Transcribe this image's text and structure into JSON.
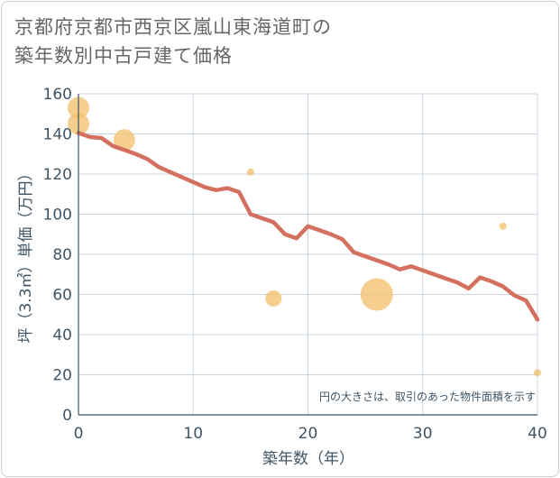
{
  "title_lines": [
    "京都府京都市西京区嵐山東海道町の",
    "築年数別中古戸建て価格"
  ],
  "chart_data": {
    "type": "scatter+line",
    "xlabel": "築年数（年）",
    "ylabel": "坪（3.3㎡）単価（万円）",
    "xlim": [
      0,
      40
    ],
    "ylim": [
      0,
      160
    ],
    "xticks": [
      0,
      10,
      20,
      30,
      40
    ],
    "yticks": [
      0,
      20,
      40,
      60,
      80,
      100,
      120,
      140,
      160
    ],
    "grid": true,
    "note": "円の大きさは、取引のあった物件面積を示す",
    "colors": {
      "line": "#d4705f",
      "bubble": "#f4c16f",
      "grid": "#c9d6e2",
      "axis_text": "#3f5566"
    },
    "line": {
      "x": [
        0,
        1,
        2,
        3,
        4,
        5,
        6,
        7,
        8,
        9,
        10,
        11,
        12,
        13,
        14,
        15,
        16,
        17,
        18,
        19,
        20,
        21,
        22,
        23,
        24,
        25,
        26,
        27,
        28,
        29,
        30,
        31,
        32,
        33,
        34,
        35,
        36,
        37,
        38,
        39,
        40
      ],
      "y": [
        140.5,
        138.5,
        138,
        134,
        132,
        130,
        127.5,
        123.5,
        121,
        118.5,
        116,
        113.5,
        112,
        113,
        111,
        100,
        98,
        96,
        90,
        88,
        94,
        92,
        90,
        87.5,
        81,
        79,
        77,
        75,
        72.5,
        74,
        72,
        70,
        68,
        66,
        63,
        68.5,
        66.5,
        64,
        59.5,
        57,
        47.5
      ]
    },
    "bubbles": [
      {
        "x": 0,
        "y": 153,
        "size": 3
      },
      {
        "x": 0,
        "y": 145,
        "size": 3
      },
      {
        "x": 4,
        "y": 137,
        "size": 3
      },
      {
        "x": 15,
        "y": 121,
        "size": 1
      },
      {
        "x": 17,
        "y": 58,
        "size": 2
      },
      {
        "x": 26,
        "y": 60,
        "size": 4
      },
      {
        "x": 37,
        "y": 94,
        "size": 1
      },
      {
        "x": 40,
        "y": 21,
        "size": 1
      }
    ]
  }
}
